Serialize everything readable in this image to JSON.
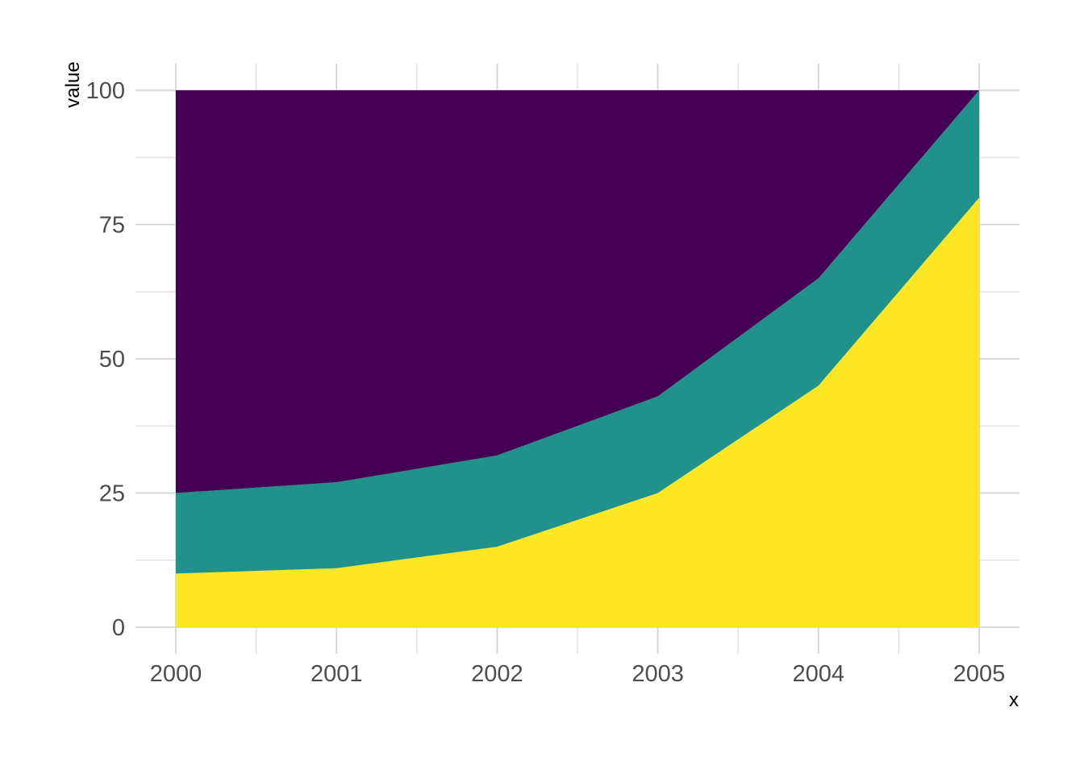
{
  "chart_data": {
    "type": "area",
    "stacked": true,
    "title": "",
    "xlabel": "x",
    "ylabel": "value",
    "x": [
      2000,
      2001,
      2002,
      2003,
      2004,
      2005
    ],
    "series": [
      {
        "name": "bottom-band-yellow",
        "color": "#FDE725",
        "values": [
          10,
          11,
          15,
          25,
          45,
          80
        ]
      },
      {
        "name": "middle-band-teal",
        "color": "#21918C",
        "values": [
          15,
          16,
          17,
          18,
          20,
          20
        ]
      },
      {
        "name": "top-band-purple",
        "color": "#440154",
        "values": [
          75,
          73,
          68,
          57,
          35,
          0
        ]
      }
    ],
    "stack_total": 100,
    "x_ticks": [
      2000,
      2001,
      2002,
      2003,
      2004,
      2005
    ],
    "y_ticks": [
      0,
      25,
      50,
      75,
      100
    ],
    "xlim": [
      2000,
      2005
    ],
    "ylim": [
      0,
      100
    ],
    "legend": "none",
    "grid": {
      "show_major": true,
      "show_minor": true,
      "major_color": "#D4D4D4",
      "minor_color": "#DDDDDD"
    },
    "background_color": "#FFFFFF",
    "axis_text_color": "#4D4D4D",
    "axis_title_color": "#000000"
  }
}
